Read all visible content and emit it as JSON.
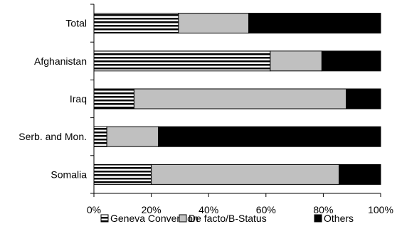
{
  "chart_data": {
    "type": "bar",
    "orientation": "horizontal",
    "stacked": "percent",
    "title": "",
    "xlabel": "",
    "ylabel": "",
    "xlim": [
      0,
      100
    ],
    "x_ticks": [
      "0%",
      "20%",
      "40%",
      "60%",
      "80%",
      "100%"
    ],
    "categories": [
      "Total",
      "Afghanistan",
      "Iraq",
      "Serb. and Mon.",
      "Somalia"
    ],
    "series": [
      {
        "name": "Geneva Convention",
        "values": [
          29.5,
          61.5,
          14,
          4.5,
          20
        ],
        "color": "#000000",
        "pattern": "horizontal-stripes"
      },
      {
        "name": "De facto/B-Status",
        "values": [
          24.5,
          18,
          74,
          18,
          65.5
        ],
        "color": "#c0c0c0",
        "pattern": "solid"
      },
      {
        "name": "Others",
        "values": [
          46,
          20.5,
          12,
          77.5,
          14.5
        ],
        "color": "#000000",
        "pattern": "solid"
      }
    ],
    "grid": false,
    "legend_position": "bottom"
  }
}
